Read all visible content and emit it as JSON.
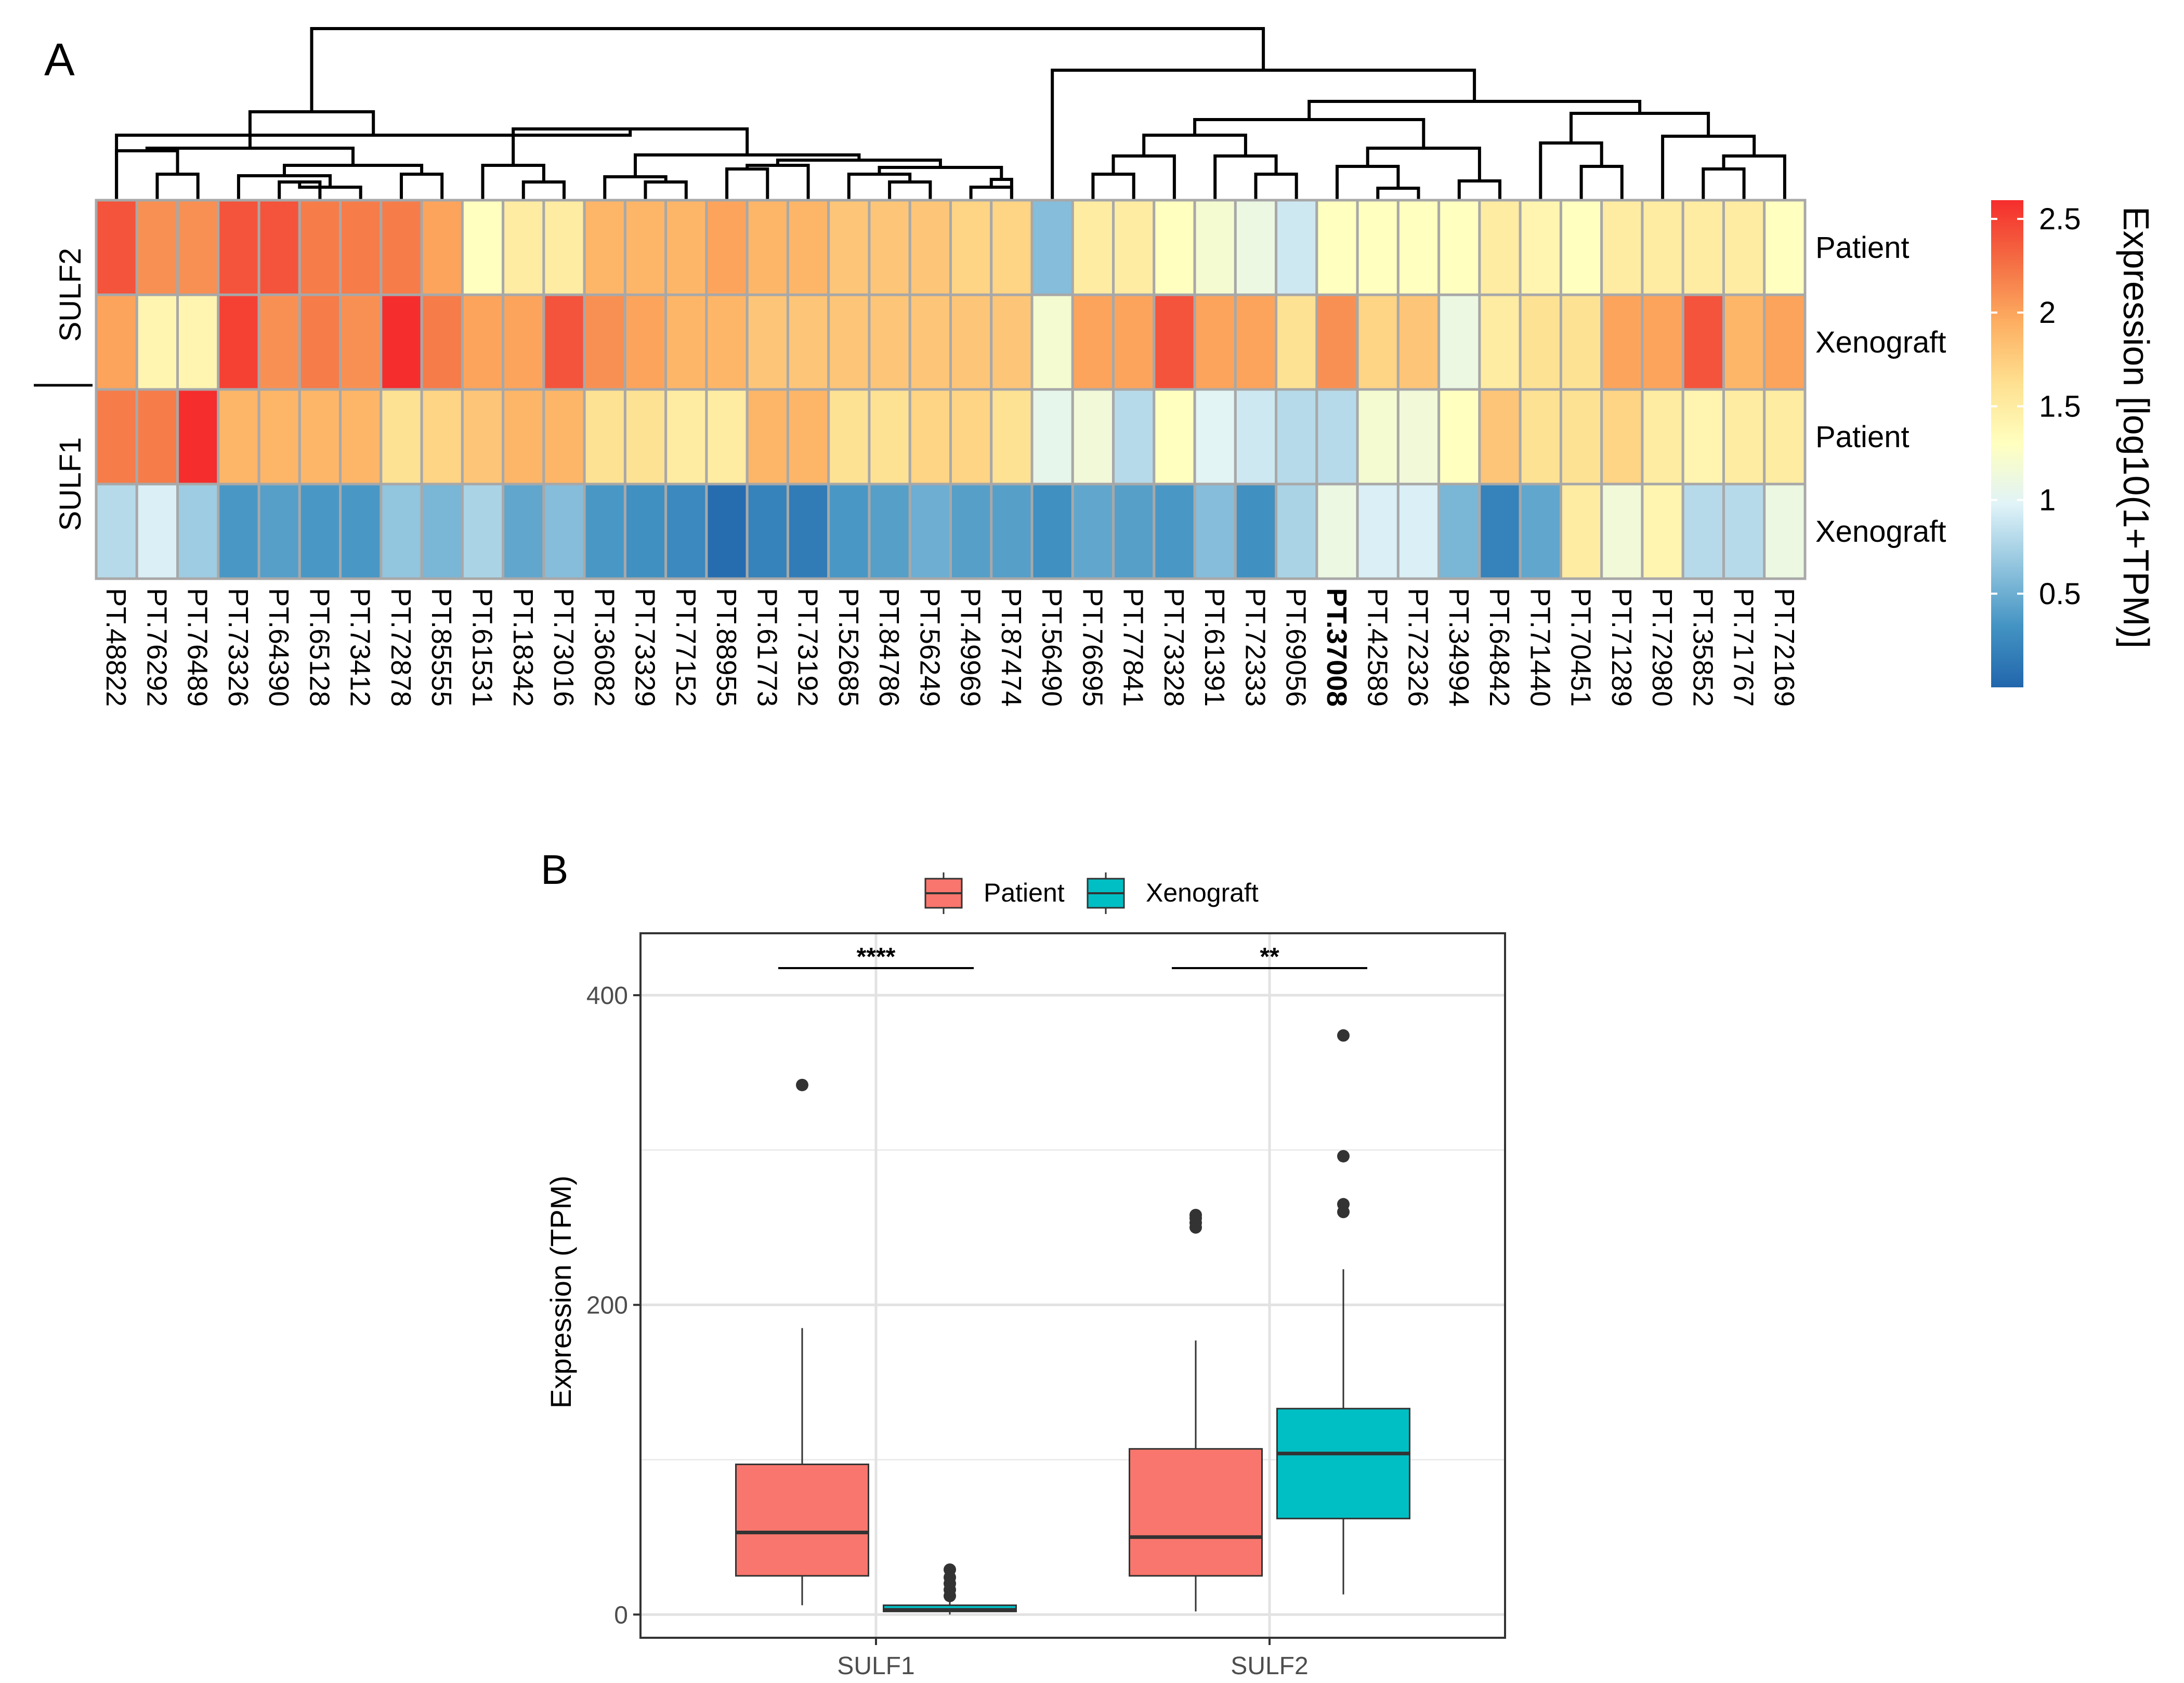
{
  "chart_data": [
    {
      "type": "heatmap",
      "panel_label": "A",
      "samples": [
        "PT.48822",
        "PT.76292",
        "PT.76489",
        "PT.73326",
        "PT.64390",
        "PT.65128",
        "PT.73412",
        "PT.72878",
        "PT.85555",
        "PT.61531",
        "PT.18342",
        "PT.73016",
        "PT.36082",
        "PT.73329",
        "PT.77152",
        "PT.88955",
        "PT.61773",
        "PT.73192",
        "PT.52685",
        "PT.84786",
        "PT.56249",
        "PT.49969",
        "PT.87474",
        "PT.56490",
        "PT.76695",
        "PT.77841",
        "PT.73328",
        "PT.61391",
        "PT.72333",
        "PT.69056",
        "PT.37008",
        "PT.42589",
        "PT.72326",
        "PT.34994",
        "PT.64842",
        "PT.71440",
        "PT.70451",
        "PT.71289",
        "PT.72980",
        "PT.35852",
        "PT.71767",
        "PT.72169"
      ],
      "highlighted_sample": "PT.37008",
      "gene_groups": [
        {
          "gene": "SULF2",
          "row_labels": [
            "Patient",
            "Xenograft"
          ]
        },
        {
          "gene": "SULF1",
          "row_labels": [
            "Patient",
            "Xenograft"
          ]
        }
      ],
      "rows": [
        {
          "gene": "SULF2",
          "label": "Patient",
          "values": [
            2.4,
            2.1,
            2.1,
            2.4,
            2.4,
            2.2,
            2.2,
            2.2,
            2.0,
            1.3,
            1.5,
            1.5,
            1.9,
            1.9,
            1.9,
            2.0,
            1.9,
            1.9,
            1.8,
            1.8,
            1.8,
            1.7,
            1.7,
            0.6,
            1.5,
            1.5,
            1.3,
            1.2,
            1.1,
            0.9,
            1.3,
            1.3,
            1.3,
            1.3,
            1.5,
            1.4,
            1.3,
            1.5,
            1.5,
            1.5,
            1.5,
            1.3
          ]
        },
        {
          "gene": "SULF2",
          "label": "Xenograft",
          "values": [
            2.0,
            1.4,
            1.4,
            2.5,
            2.1,
            2.2,
            2.1,
            2.6,
            2.2,
            2.0,
            2.0,
            2.4,
            2.1,
            2.0,
            1.9,
            1.9,
            1.8,
            1.8,
            1.8,
            1.8,
            1.8,
            1.8,
            1.8,
            1.2,
            2.0,
            2.0,
            2.4,
            2.0,
            2.0,
            1.6,
            2.1,
            1.7,
            1.8,
            1.1,
            1.5,
            1.6,
            1.6,
            2.0,
            2.0,
            2.4,
            1.9,
            2.0
          ]
        },
        {
          "gene": "SULF1",
          "label": "Patient",
          "values": [
            2.2,
            2.2,
            2.6,
            1.9,
            1.9,
            1.9,
            1.9,
            1.6,
            1.7,
            1.8,
            1.9,
            1.9,
            1.6,
            1.6,
            1.5,
            1.5,
            1.9,
            1.9,
            1.6,
            1.6,
            1.7,
            1.7,
            1.6,
            1.05,
            1.15,
            0.8,
            1.3,
            1.0,
            0.9,
            0.8,
            0.8,
            1.2,
            1.15,
            1.3,
            1.8,
            1.6,
            1.6,
            1.7,
            1.5,
            1.4,
            1.5,
            1.5
          ]
        },
        {
          "gene": "SULF1",
          "label": "Xenograft",
          "values": [
            0.8,
            0.95,
            0.7,
            0.35,
            0.4,
            0.35,
            0.35,
            0.65,
            0.55,
            0.75,
            0.45,
            0.6,
            0.35,
            0.3,
            0.25,
            0.05,
            0.2,
            0.15,
            0.35,
            0.4,
            0.5,
            0.4,
            0.4,
            0.3,
            0.45,
            0.4,
            0.35,
            0.6,
            0.3,
            0.75,
            1.1,
            0.95,
            0.95,
            0.55,
            0.2,
            0.45,
            1.5,
            1.15,
            1.4,
            0.8,
            0.8,
            1.1
          ]
        }
      ],
      "colorbar": {
        "title": "Expression [log10(1+TPM)]",
        "min": 0.0,
        "max": 2.6,
        "ticks": [
          0.5,
          1,
          1.5,
          2,
          2.5
        ],
        "tick_labels": [
          "0.5",
          "1",
          "1.5",
          "2",
          "2.5"
        ],
        "colors": [
          "#2166ac",
          "#4393c3",
          "#92c5de",
          "#e0f3f8",
          "#ffffbf",
          "#fee090",
          "#fdae61",
          "#f46d43",
          "#f52d2d"
        ]
      }
    },
    {
      "type": "box",
      "panel_label": "B",
      "ylabel": "Expression (TPM)",
      "xlabel": "",
      "ylim": [
        -15,
        440
      ],
      "yticks": [
        0,
        200,
        400
      ],
      "ytick_labels": [
        "0",
        "200",
        "400"
      ],
      "grid": true,
      "legend_position": "top",
      "categories": [
        "SULF1",
        "SULF2"
      ],
      "series": [
        {
          "name": "Patient",
          "color": "#f8766d",
          "boxes": [
            {
              "category": "SULF1",
              "q1": 25,
              "median": 53,
              "q3": 97,
              "whisker_low": 6,
              "whisker_high": 185,
              "outliers": [
                342
              ]
            },
            {
              "category": "SULF2",
              "q1": 25,
              "median": 50,
              "q3": 107,
              "whisker_low": 2,
              "whisker_high": 177,
              "outliers": [
                250,
                253,
                256,
                258
              ]
            }
          ]
        },
        {
          "name": "Xenograft",
          "color": "#00bfc4",
          "boxes": [
            {
              "category": "SULF1",
              "q1": 2,
              "median": 3,
              "q3": 6,
              "whisker_low": 0,
              "whisker_high": 9,
              "outliers": [
                12,
                16,
                20,
                24,
                29
              ]
            },
            {
              "category": "SULF2",
              "q1": 62,
              "median": 104,
              "q3": 133,
              "whisker_low": 13,
              "whisker_high": 223,
              "outliers": [
                260,
                265,
                296,
                374
              ]
            }
          ]
        }
      ],
      "significance": [
        {
          "category": "SULF1",
          "label": "****"
        },
        {
          "category": "SULF2",
          "label": "**"
        }
      ]
    }
  ]
}
